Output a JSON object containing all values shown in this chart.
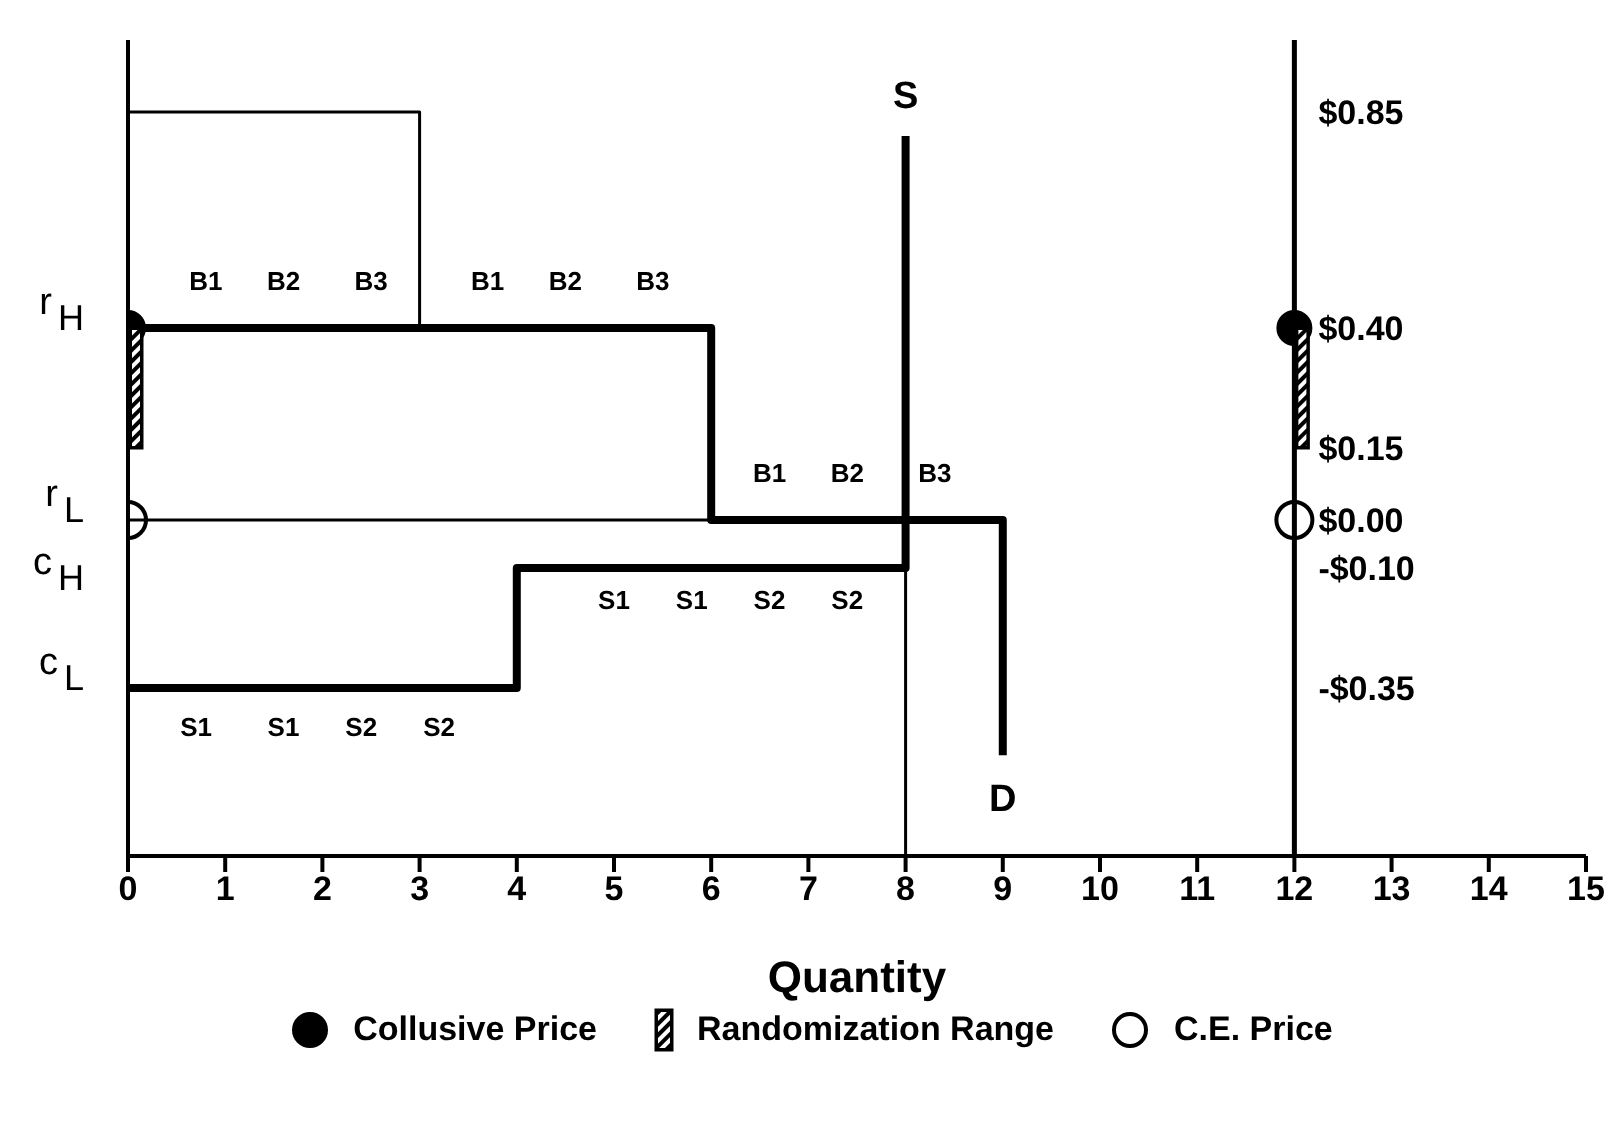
{
  "chart_data": {
    "type": "line",
    "xlabel": "Quantity",
    "xlim": [
      0,
      15
    ],
    "xticks": [
      0,
      1,
      2,
      3,
      4,
      5,
      6,
      7,
      8,
      9,
      10,
      11,
      12,
      13,
      14,
      15
    ],
    "ylim": [
      -0.7,
      1.0
    ],
    "yticks": [
      {
        "value": 0.85,
        "label": "$0.85"
      },
      {
        "value": 0.4,
        "label": "$0.40"
      },
      {
        "value": 0.15,
        "label": "$0.15"
      },
      {
        "value": 0.0,
        "label": "$0.00"
      },
      {
        "value": -0.1,
        "label": "-$0.10"
      },
      {
        "value": -0.35,
        "label": "-$0.35"
      }
    ],
    "ref_lines": [
      {
        "axis": "x",
        "value": 12,
        "color": "#000000"
      }
    ],
    "legend": "bottom",
    "grid": false,
    "series": [
      {
        "name": "Collusive Price",
        "type": "scatter",
        "color": "#000000",
        "marker": "circle",
        "x": [
          0,
          12
        ],
        "values": [
          0.4,
          0.4
        ]
      },
      {
        "name": "Randomization Range",
        "type": "bar",
        "color": "#000000",
        "x": [
          0,
          12
        ],
        "base": [
          0.15,
          0.15
        ],
        "values": [
          0.25,
          0.25
        ]
      },
      {
        "name": "C.E. Price",
        "type": "scatter",
        "color": "#000000",
        "marker": "circle",
        "x": [
          0,
          12
        ],
        "values": [
          0.0,
          0.0
        ]
      },
      {
        "color": "#000000",
        "x": [
          0,
          6,
          6,
          9,
          9
        ],
        "values": [
          0.4,
          0.4,
          0.0,
          0.0,
          -0.49
        ]
      },
      {
        "color": "#000000",
        "x": [
          0,
          4,
          4,
          8,
          8
        ],
        "values": [
          -0.35,
          -0.35,
          -0.1,
          -0.1,
          0.8
        ]
      },
      {
        "color": "#000000",
        "x": [
          8,
          8
        ],
        "values": [
          -0.7,
          -0.1
        ]
      },
      {
        "color": "#000000",
        "x": [
          0,
          0,
          3,
          3
        ],
        "values": [
          0.97,
          0.85,
          0.85,
          0.4
        ]
      },
      {
        "color": "#000000",
        "x": [
          0,
          6
        ],
        "values": [
          0.0,
          0.0
        ]
      }
    ],
    "annotations": [
      {
        "text": "S",
        "x": 8,
        "y": 0.8
      },
      {
        "text": "D",
        "x": 9,
        "y": -0.49
      },
      "B1",
      "B2",
      "B3",
      "B1",
      "B2",
      "B3",
      "B1",
      "B2",
      "B3",
      "S1",
      "S1",
      "S2",
      "S2",
      "S1",
      "S1",
      "S2",
      "S2",
      "r$_{H}$",
      "r$_{L}$",
      "c$_{H}$",
      "c$_{L}$"
    ]
  }
}
